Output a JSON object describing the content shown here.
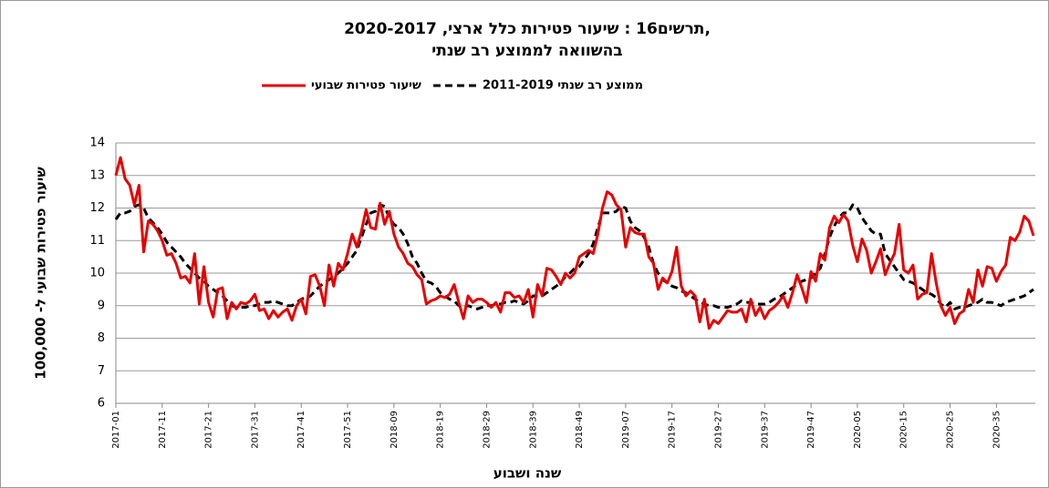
{
  "chart_data": {
    "type": "line",
    "title": [
      "תרשים16 : שיעור פטירות כלל ארצי, 2020-2017,",
      "בהשוואה לממוצע רב שנתי"
    ],
    "x_label": "שנה ושבוע",
    "y_label": "שיעור פטירות שבועי ל- 100,000",
    "ylim": [
      6,
      14
    ],
    "yticks": [
      6,
      7,
      8,
      9,
      10,
      11,
      12,
      13,
      14
    ],
    "grid": true,
    "categories": [
      "2017-01",
      null,
      null,
      null,
      null,
      null,
      null,
      null,
      null,
      null,
      "2017-11",
      null,
      null,
      null,
      null,
      null,
      null,
      null,
      null,
      null,
      "2017-21",
      null,
      null,
      null,
      null,
      null,
      null,
      null,
      null,
      null,
      "2017-31",
      null,
      null,
      null,
      null,
      null,
      null,
      null,
      null,
      null,
      "2017-41",
      null,
      null,
      null,
      null,
      null,
      null,
      null,
      null,
      null,
      "2017-51",
      null,
      null,
      null,
      null,
      null,
      null,
      null,
      null,
      null,
      "2018-09",
      null,
      null,
      null,
      null,
      null,
      null,
      null,
      null,
      null,
      "2018-19",
      null,
      null,
      null,
      null,
      null,
      null,
      null,
      null,
      null,
      "2018-29",
      null,
      null,
      null,
      null,
      null,
      null,
      null,
      null,
      null,
      "2018-39",
      null,
      null,
      null,
      null,
      null,
      null,
      null,
      null,
      null,
      "2018-49",
      null,
      null,
      null,
      null,
      null,
      null,
      null,
      null,
      null,
      "2019-07",
      null,
      null,
      null,
      null,
      null,
      null,
      null,
      null,
      null,
      "2019-17",
      null,
      null,
      null,
      null,
      null,
      null,
      null,
      null,
      null,
      "2019-27",
      null,
      null,
      null,
      null,
      null,
      null,
      null,
      null,
      null,
      "2019-37",
      null,
      null,
      null,
      null,
      null,
      null,
      null,
      null,
      null,
      "2019-47",
      null,
      null,
      null,
      null,
      null,
      null,
      null,
      null,
      null,
      "2020-05",
      null,
      null,
      null,
      null,
      null,
      null,
      null,
      null,
      null,
      "2020-15",
      null,
      null,
      null,
      null,
      null,
      null,
      null,
      null,
      null,
      "2020-25",
      null,
      null,
      null,
      null,
      null,
      null,
      null,
      null,
      null,
      "2020-35",
      null,
      null,
      null,
      null,
      null,
      null,
      null,
      null
    ],
    "series": [
      {
        "name": "שיעור פטירות שבועי",
        "color": "#e60000",
        "dashed": false,
        "values": [
          13.0,
          13.55,
          12.9,
          12.7,
          12.1,
          12.7,
          10.65,
          11.6,
          11.5,
          11.3,
          11.0,
          10.55,
          10.6,
          10.3,
          9.85,
          9.9,
          9.7,
          10.6,
          9.05,
          10.2,
          9.1,
          8.65,
          9.5,
          9.55,
          8.6,
          9.1,
          8.9,
          9.1,
          9.05,
          9.15,
          9.35,
          8.85,
          8.9,
          8.6,
          8.85,
          8.65,
          8.8,
          8.9,
          8.55,
          9.0,
          9.2,
          8.75,
          9.9,
          9.95,
          9.6,
          9.0,
          10.25,
          9.6,
          10.3,
          10.1,
          10.6,
          11.2,
          10.8,
          11.3,
          11.95,
          11.4,
          11.35,
          12.15,
          11.5,
          11.9,
          11.2,
          10.8,
          10.6,
          10.3,
          10.2,
          9.95,
          9.8,
          9.05,
          9.15,
          9.2,
          9.3,
          9.25,
          9.35,
          9.65,
          9.1,
          8.6,
          9.3,
          9.1,
          9.2,
          9.2,
          9.1,
          8.95,
          9.1,
          8.8,
          9.4,
          9.4,
          9.25,
          9.3,
          9.1,
          9.5,
          8.65,
          9.65,
          9.3,
          10.15,
          10.1,
          9.9,
          9.65,
          10.0,
          9.85,
          10.0,
          10.5,
          10.6,
          10.7,
          10.6,
          11.2,
          12.0,
          12.5,
          12.4,
          12.1,
          11.95,
          10.8,
          11.4,
          11.25,
          11.2,
          11.2,
          10.5,
          10.3,
          9.5,
          9.85,
          9.7,
          10.05,
          10.8,
          9.6,
          9.3,
          9.45,
          9.3,
          8.5,
          9.2,
          8.3,
          8.55,
          8.45,
          8.65,
          8.85,
          8.8,
          8.8,
          8.9,
          8.5,
          9.2,
          8.7,
          8.95,
          8.6,
          8.85,
          8.95,
          9.1,
          9.3,
          8.95,
          9.4,
          9.95,
          9.55,
          9.1,
          10.05,
          9.75,
          10.6,
          10.4,
          11.4,
          11.75,
          11.55,
          11.8,
          11.6,
          10.85,
          10.35,
          11.05,
          10.7,
          10.0,
          10.35,
          10.75,
          9.95,
          10.3,
          10.6,
          11.5,
          10.1,
          10.0,
          10.25,
          9.2,
          9.35,
          9.4,
          10.6,
          9.7,
          9.0,
          8.7,
          8.95,
          8.45,
          8.75,
          8.85,
          9.5,
          9.1,
          10.1,
          9.6,
          10.2,
          10.15,
          9.75,
          10.05,
          10.25,
          11.1,
          11.0,
          11.25,
          11.75,
          11.6,
          11.15
        ]
      },
      {
        "name": "ממוצע רב שנתי 2011-2019",
        "color": "#000000",
        "dashed": true,
        "values": [
          11.65,
          11.85,
          11.85,
          11.9,
          12.05,
          12.1,
          12.0,
          11.7,
          11.55,
          11.4,
          11.2,
          10.95,
          10.8,
          10.65,
          10.5,
          10.3,
          10.15,
          10.0,
          9.85,
          9.75,
          9.6,
          9.5,
          9.4,
          9.3,
          9.15,
          9.0,
          8.95,
          8.95,
          8.95,
          9.0,
          9.0,
          9.05,
          9.1,
          9.1,
          9.15,
          9.1,
          9.05,
          9.0,
          9.0,
          9.1,
          9.2,
          9.25,
          9.3,
          9.45,
          9.6,
          9.7,
          9.8,
          9.9,
          10.0,
          10.15,
          10.3,
          10.5,
          10.7,
          11.1,
          11.5,
          11.85,
          11.9,
          12.1,
          12.05,
          11.7,
          11.5,
          11.4,
          11.2,
          10.9,
          10.5,
          10.3,
          10.0,
          9.75,
          9.7,
          9.6,
          9.4,
          9.3,
          9.2,
          9.15,
          9.0,
          8.95,
          9.0,
          8.95,
          8.9,
          8.95,
          9.0,
          9.0,
          9.05,
          9.05,
          9.1,
          9.1,
          9.15,
          9.1,
          9.05,
          9.15,
          9.3,
          9.3,
          9.3,
          9.4,
          9.5,
          9.6,
          9.7,
          9.9,
          10.0,
          10.15,
          10.2,
          10.4,
          10.6,
          10.9,
          11.4,
          11.85,
          11.85,
          11.85,
          11.9,
          12.05,
          12.0,
          11.6,
          11.4,
          11.3,
          11.1,
          10.8,
          10.3,
          10.0,
          9.8,
          9.7,
          9.6,
          9.55,
          9.45,
          9.4,
          9.3,
          9.2,
          9.1,
          9.05,
          9.0,
          9.0,
          8.95,
          8.95,
          8.95,
          9.0,
          9.05,
          9.15,
          9.1,
          9.1,
          9.05,
          9.05,
          9.05,
          9.1,
          9.2,
          9.25,
          9.35,
          9.45,
          9.55,
          9.65,
          9.75,
          9.8,
          9.85,
          10.0,
          10.15,
          10.6,
          11.1,
          11.45,
          11.7,
          11.85,
          11.85,
          12.1,
          12.0,
          11.7,
          11.5,
          11.3,
          11.2,
          11.2,
          10.6,
          10.4,
          10.2,
          10.0,
          9.8,
          9.75,
          9.7,
          9.6,
          9.5,
          9.4,
          9.35,
          9.25,
          9.05,
          8.95,
          9.1,
          8.9,
          8.95,
          8.95,
          9.0,
          9.05,
          9.1,
          9.2,
          9.1,
          9.1,
          9.05,
          9.0,
          9.1,
          9.15,
          9.2,
          9.25,
          9.3,
          9.4,
          9.5
        ]
      }
    ]
  }
}
